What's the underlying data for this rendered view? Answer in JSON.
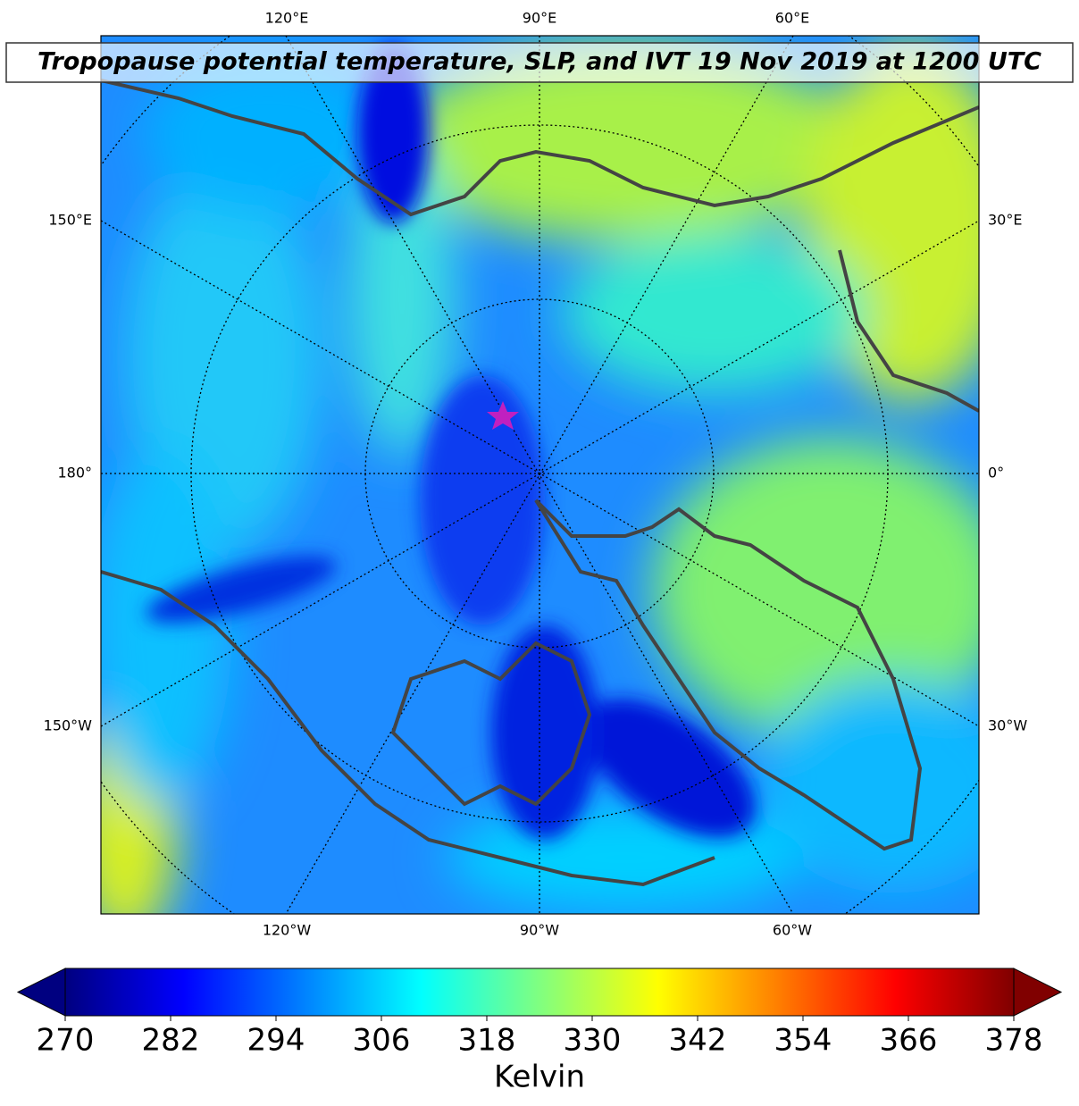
{
  "title": "Tropopause potential temperature, SLP, and IVT 19 Nov 2019 at 1200 UTC",
  "map": {
    "top_labels": [
      "120°E",
      "90°E",
      "60°E"
    ],
    "left_labels": [
      "150°E",
      "180°",
      "150°W"
    ],
    "right_labels": [
      "30°E",
      "0°",
      "30°W"
    ],
    "bottom_labels": [
      "120°W",
      "90°W",
      "60°W"
    ]
  },
  "colorbar": {
    "colormap": "jet",
    "range": [
      270,
      378
    ],
    "ticks": [
      270,
      282,
      294,
      306,
      318,
      330,
      342,
      354,
      366,
      378
    ],
    "label": "Kelvin",
    "extend": "both"
  }
}
